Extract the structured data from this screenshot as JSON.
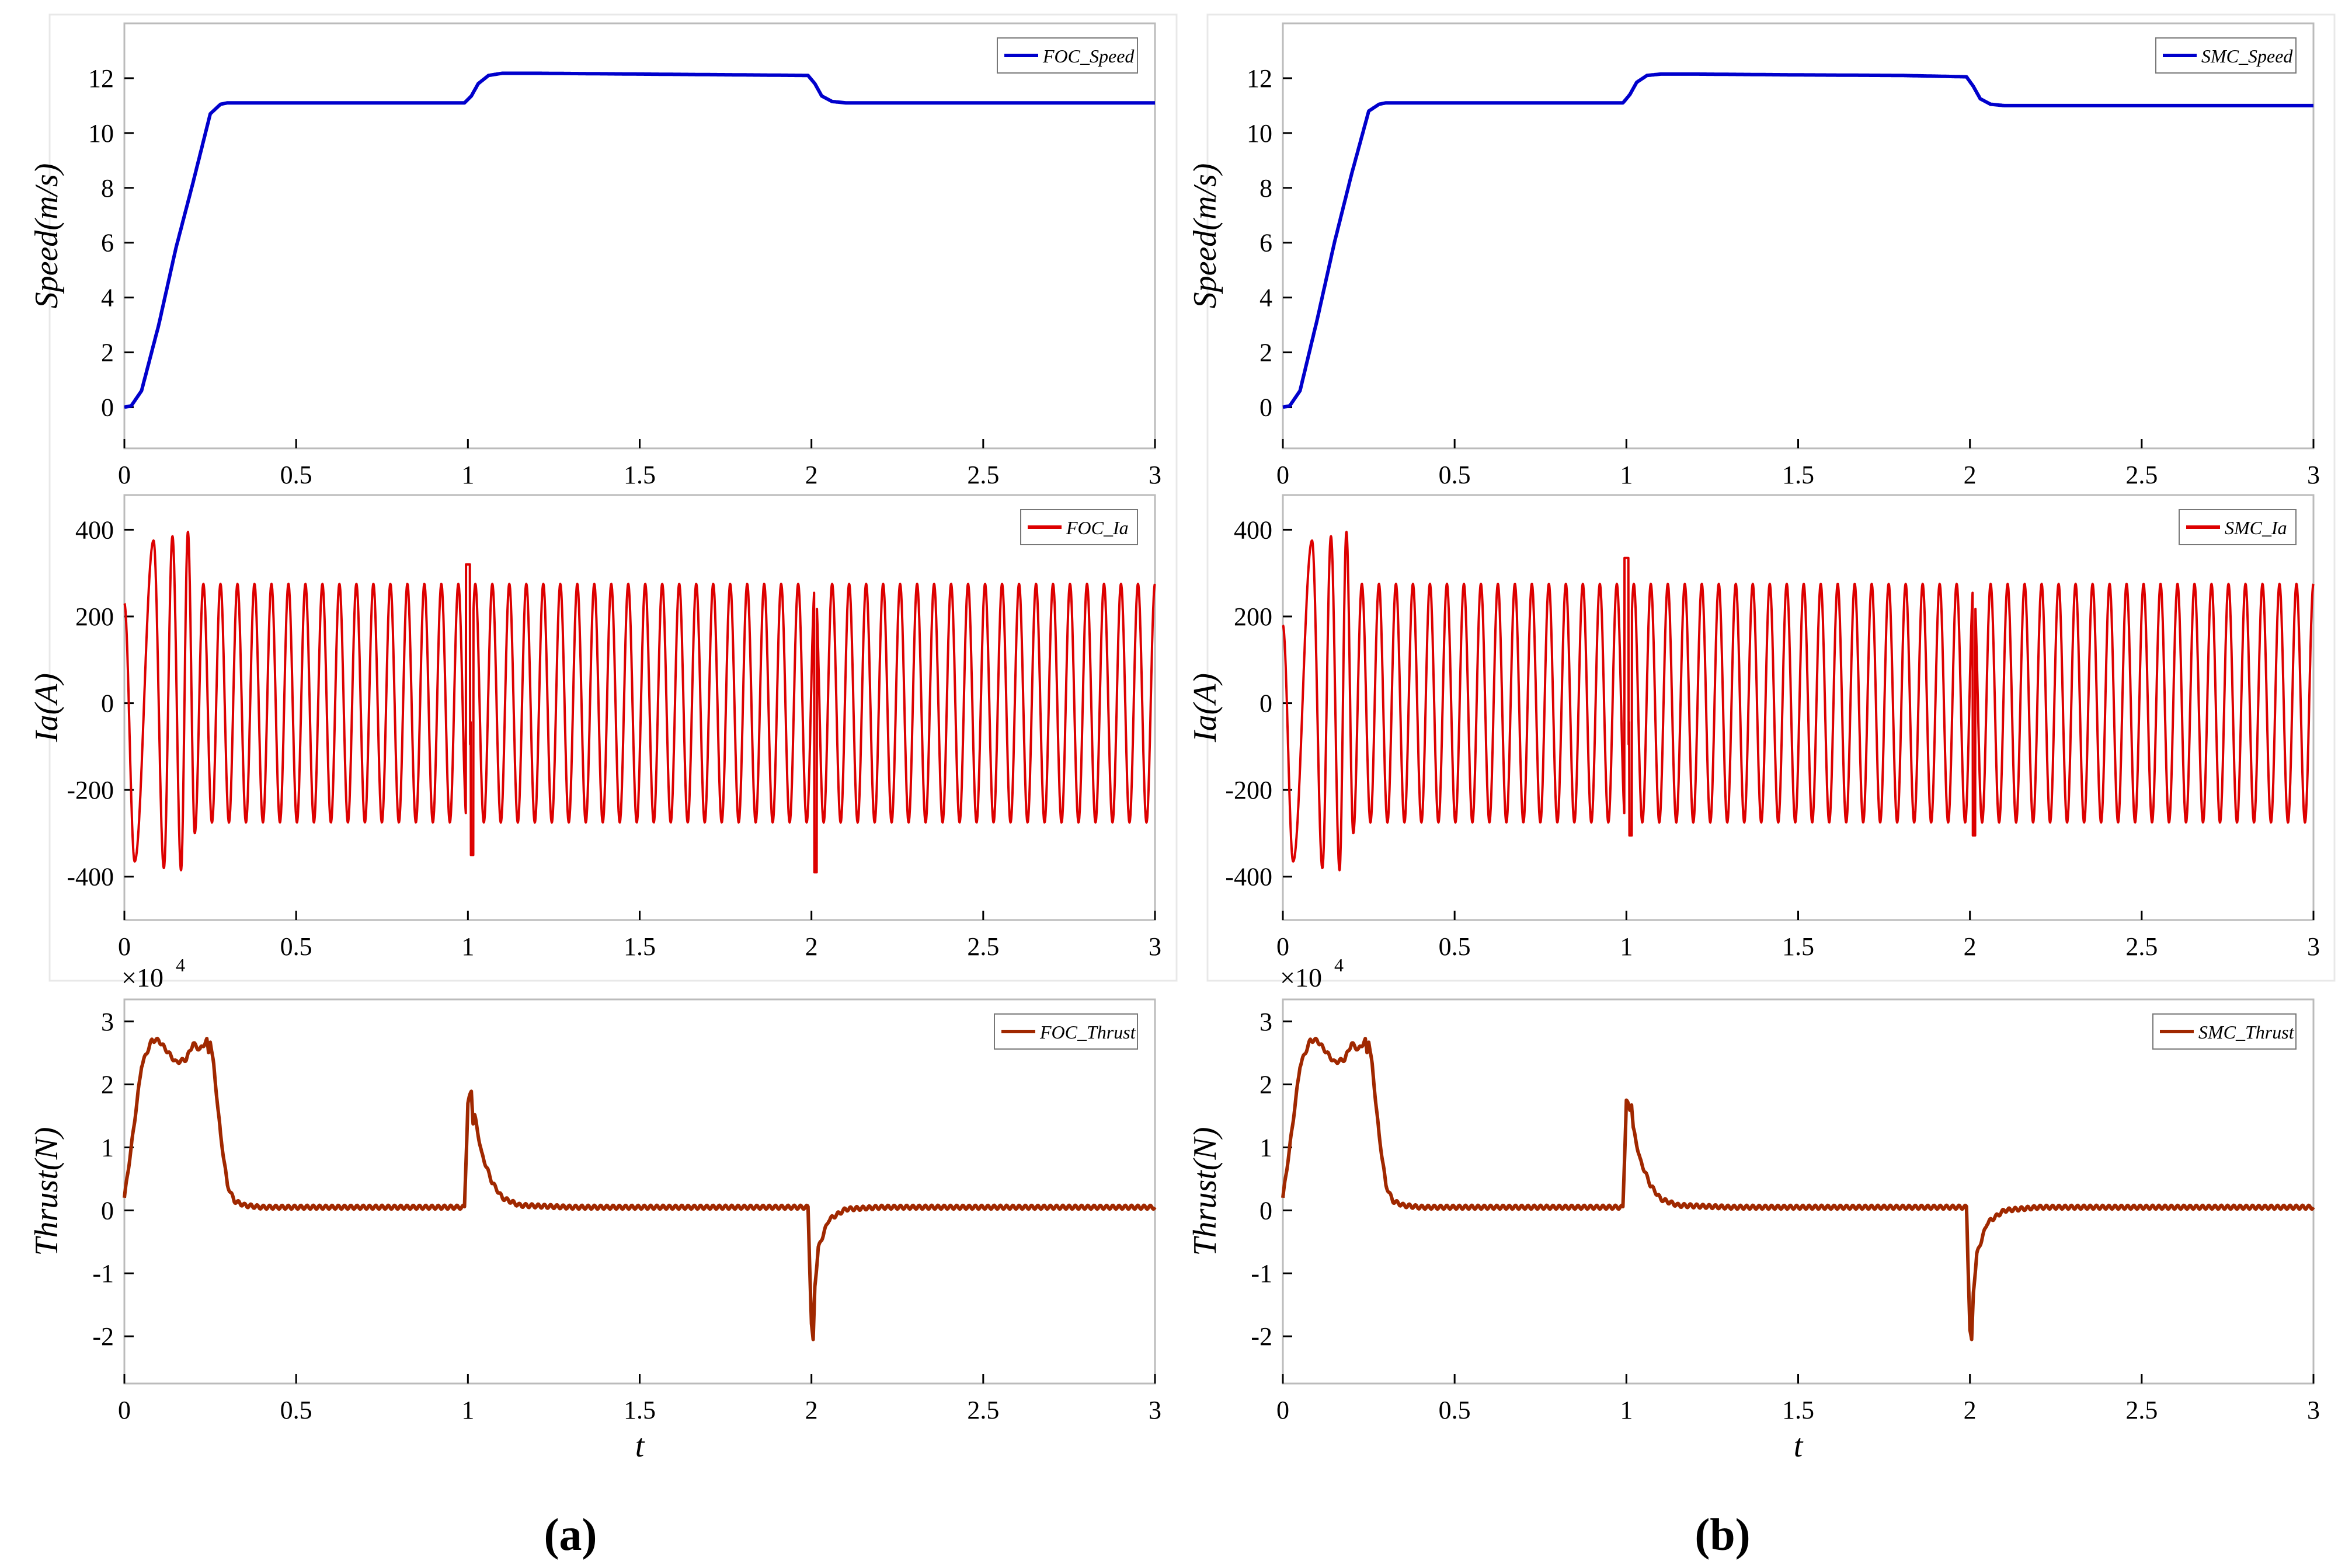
{
  "figure": {
    "panel_labels": [
      "(a)",
      "(b)"
    ],
    "colors": {
      "speed": "#0000CC",
      "current": "#DD0000",
      "thrust": "#A02800",
      "axis": "#000000",
      "grid_box": "#BBBBBB",
      "tick_text": "#000000"
    }
  },
  "chart_data": [
    {
      "panel": "a",
      "type": "line",
      "xlabel": "",
      "ylabel": "Speed(m/s)",
      "xlim": [
        0,
        3
      ],
      "ylim": [
        -1.5,
        14
      ],
      "xticks": [
        "0",
        "0.5",
        "1",
        "1.5",
        "2",
        "2.5",
        "3"
      ],
      "yticks": [
        "0",
        "2",
        "4",
        "6",
        "8",
        "10",
        "12"
      ],
      "legend": "FOC_Speed",
      "legend_position": "top-right",
      "series": [
        {
          "name": "FOC_Speed",
          "x": [
            0,
            0.02,
            0.05,
            0.1,
            0.15,
            0.2,
            0.25,
            0.28,
            0.3,
            0.35,
            0.5,
            0.8,
            0.99,
            1.01,
            1.03,
            1.06,
            1.1,
            1.2,
            1.5,
            1.8,
            1.99,
            2.01,
            2.03,
            2.06,
            2.1,
            2.2,
            2.5,
            3.0
          ],
          "values": [
            0,
            0.05,
            0.6,
            3.0,
            5.8,
            8.2,
            10.7,
            11.05,
            11.1,
            11.1,
            11.1,
            11.1,
            11.1,
            11.35,
            11.8,
            12.1,
            12.18,
            12.18,
            12.15,
            12.12,
            12.1,
            11.8,
            11.35,
            11.15,
            11.1,
            11.1,
            11.1,
            11.1
          ]
        }
      ]
    },
    {
      "panel": "a",
      "type": "line",
      "xlabel": "",
      "ylabel": "Ia(A)",
      "xlim": [
        0,
        3
      ],
      "ylim": [
        -500,
        480
      ],
      "xticks": [
        "0",
        "0.5",
        "1",
        "1.5",
        "2",
        "2.5",
        "3"
      ],
      "yticks": [
        "-400",
        "-200",
        "0",
        "200",
        "400"
      ],
      "legend": "FOC_Ia",
      "legend_position": "top-right",
      "series": [
        {
          "name": "FOC_Ia",
          "steady_amplitude": 275,
          "start_value": 230,
          "first_trough": -365,
          "startup_peaks": [
            375,
            385,
            395
          ],
          "startup_troughs": [
            -380,
            -385
          ],
          "spike_at_1s": [
            320,
            -350
          ],
          "spike_at_2s": -390,
          "cycles_visible": 60
        }
      ]
    },
    {
      "panel": "a",
      "type": "line",
      "xlabel": "t",
      "ylabel": "Thrust(N)",
      "exponent_label": "×10",
      "exponent_power": "4",
      "xlim": [
        0,
        3
      ],
      "ylim": [
        -2.75,
        3.35
      ],
      "xticks": [
        "0",
        "0.5",
        "1",
        "1.5",
        "2",
        "2.5",
        "3"
      ],
      "yticks": [
        "-2",
        "-1",
        "0",
        "1",
        "2",
        "3"
      ],
      "legend": "FOC_Thrust",
      "legend_position": "top-right",
      "series": [
        {
          "name": "FOC_Thrust",
          "x": [
            0,
            0.02,
            0.05,
            0.08,
            0.1,
            0.15,
            0.18,
            0.2,
            0.22,
            0.24,
            0.245,
            0.25,
            0.26,
            0.28,
            0.3,
            0.32,
            0.35,
            0.4,
            0.5,
            0.99,
            1.0,
            1.01,
            1.015,
            1.02,
            1.04,
            1.07,
            1.1,
            1.15,
            1.3,
            1.5,
            1.99,
            2.0,
            2.005,
            2.01,
            2.02,
            2.05,
            2.1,
            2.2,
            2.5,
            3.0
          ],
          "values": [
            0.2,
            1.0,
            2.3,
            2.7,
            2.7,
            2.35,
            2.4,
            2.65,
            2.55,
            2.7,
            2.5,
            2.7,
            2.3,
            1.2,
            0.4,
            0.15,
            0.08,
            0.05,
            0.05,
            0.05,
            1.7,
            1.9,
            1.4,
            1.5,
            0.9,
            0.45,
            0.2,
            0.08,
            0.05,
            0.05,
            0.05,
            -1.8,
            -2.08,
            -1.2,
            -0.6,
            -0.15,
            0.02,
            0.05,
            0.05,
            0.05
          ]
        }
      ]
    },
    {
      "panel": "b",
      "type": "line",
      "xlabel": "",
      "ylabel": "Speed(m/s)",
      "xlim": [
        0,
        3
      ],
      "ylim": [
        -1.5,
        14
      ],
      "xticks": [
        "0",
        "0.5",
        "1",
        "1.5",
        "2",
        "2.5",
        "3"
      ],
      "yticks": [
        "0",
        "2",
        "4",
        "6",
        "8",
        "10",
        "12"
      ],
      "legend": "SMC_Speed",
      "legend_position": "top-right",
      "series": [
        {
          "name": "SMC_Speed",
          "x": [
            0,
            0.02,
            0.05,
            0.1,
            0.15,
            0.2,
            0.25,
            0.28,
            0.3,
            0.35,
            0.5,
            0.8,
            0.99,
            1.01,
            1.03,
            1.06,
            1.1,
            1.2,
            1.5,
            1.8,
            1.99,
            2.01,
            2.03,
            2.06,
            2.1,
            2.2,
            2.5,
            3.0
          ],
          "values": [
            0,
            0.05,
            0.6,
            3.2,
            6.0,
            8.5,
            10.8,
            11.05,
            11.1,
            11.1,
            11.1,
            11.1,
            11.1,
            11.4,
            11.85,
            12.1,
            12.15,
            12.15,
            12.12,
            12.1,
            12.05,
            11.7,
            11.25,
            11.05,
            11.0,
            11.0,
            11.0,
            11.0
          ]
        }
      ]
    },
    {
      "panel": "b",
      "type": "line",
      "xlabel": "",
      "ylabel": "Ia(A)",
      "xlim": [
        0,
        3
      ],
      "ylim": [
        -500,
        480
      ],
      "xticks": [
        "0",
        "0.5",
        "1",
        "1.5",
        "2",
        "2.5",
        "3"
      ],
      "yticks": [
        "-400",
        "-200",
        "0",
        "200",
        "400"
      ],
      "legend": "SMC_Ia",
      "legend_position": "top-right",
      "series": [
        {
          "name": "SMC_Ia",
          "steady_amplitude": 275,
          "start_value": 180,
          "first_trough": -365,
          "startup_peaks": [
            375,
            385,
            395
          ],
          "startup_troughs": [
            -380,
            -385
          ],
          "spike_at_1s": [
            335,
            -305
          ],
          "spike_at_2s": -305,
          "cycles_visible": 60
        }
      ]
    },
    {
      "panel": "b",
      "type": "line",
      "xlabel": "t",
      "ylabel": "Thrust(N)",
      "exponent_label": "×10",
      "exponent_power": "4",
      "xlim": [
        0,
        3
      ],
      "ylim": [
        -2.75,
        3.35
      ],
      "xticks": [
        "0",
        "0.5",
        "1",
        "1.5",
        "2",
        "2.5",
        "3"
      ],
      "yticks": [
        "-2",
        "-1",
        "0",
        "1",
        "2",
        "3"
      ],
      "legend": "SMC_Thrust",
      "legend_position": "top-right",
      "series": [
        {
          "name": "SMC_Thrust",
          "x": [
            0,
            0.02,
            0.05,
            0.08,
            0.1,
            0.15,
            0.18,
            0.2,
            0.22,
            0.24,
            0.245,
            0.25,
            0.26,
            0.28,
            0.3,
            0.32,
            0.35,
            0.4,
            0.5,
            0.99,
            1.0,
            1.01,
            1.015,
            1.02,
            1.04,
            1.07,
            1.1,
            1.15,
            1.3,
            1.5,
            1.99,
            2.0,
            2.005,
            2.01,
            2.02,
            2.05,
            2.1,
            2.2,
            2.5,
            3.0
          ],
          "values": [
            0.2,
            1.0,
            2.3,
            2.7,
            2.7,
            2.35,
            2.4,
            2.65,
            2.55,
            2.7,
            2.5,
            2.7,
            2.3,
            1.2,
            0.4,
            0.15,
            0.08,
            0.05,
            0.05,
            0.05,
            1.75,
            1.6,
            1.7,
            1.3,
            0.8,
            0.4,
            0.18,
            0.08,
            0.05,
            0.05,
            0.05,
            -1.9,
            -2.08,
            -1.3,
            -0.7,
            -0.2,
            0.0,
            0.05,
            0.05,
            0.05
          ]
        }
      ]
    }
  ]
}
